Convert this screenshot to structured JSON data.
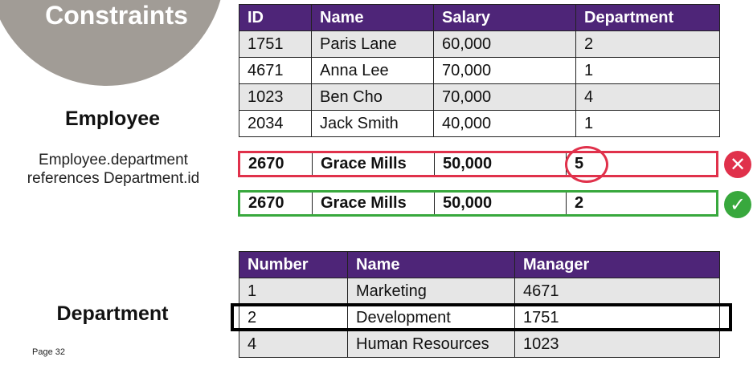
{
  "title": "Constraints",
  "employee_label": "Employee",
  "department_label": "Department",
  "fk_note_line1": "Employee.department",
  "fk_note_line2": "references Department.id",
  "page_label": "Page 32",
  "colors": {
    "header": "#4e2578",
    "error": "#e0314b",
    "ok": "#38a83d",
    "circle": "#a19c96"
  },
  "employee_table": {
    "headers": [
      "ID",
      "Name",
      "Salary",
      "Department"
    ],
    "rows": [
      [
        "1751",
        "Paris Lane",
        "60,000",
        "2"
      ],
      [
        "4671",
        "Anna Lee",
        "70,000",
        "1"
      ],
      [
        "1023",
        "Ben Cho",
        "70,000",
        "4"
      ],
      [
        "2034",
        "Jack Smith",
        "40,000",
        "1"
      ]
    ]
  },
  "invalid_row": [
    "2670",
    "Grace Mills",
    "50,000",
    "5"
  ],
  "valid_row": [
    "2670",
    "Grace Mills",
    "50,000",
    "2"
  ],
  "status_icons": {
    "invalid": "x-circle-icon",
    "valid": "check-circle-icon"
  },
  "department_table": {
    "headers": [
      "Number",
      "Name",
      "Manager"
    ],
    "rows": [
      [
        "1",
        "Marketing",
        "4671"
      ],
      [
        "2",
        "Development",
        "1751"
      ],
      [
        "4",
        "Human Resources",
        "1023"
      ]
    ]
  }
}
